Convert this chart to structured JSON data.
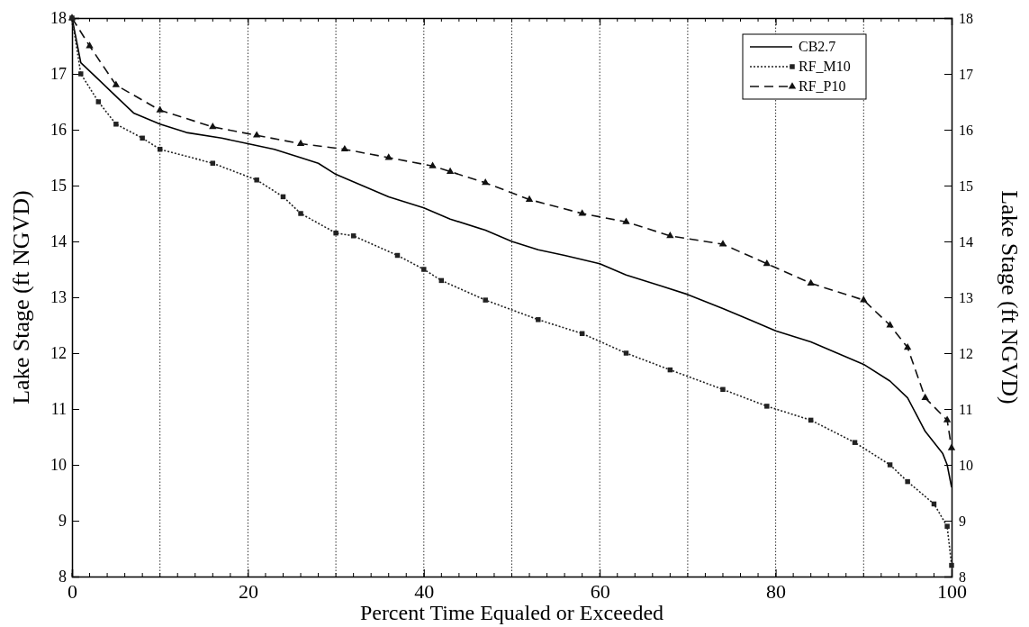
{
  "chart_data": {
    "type": "line",
    "xlabel": "Percent Time Equaled or Exceeded",
    "ylabel": "Lake Stage (ft NGVD)",
    "y2label": "Lake Stage (ft NGVD)",
    "xlim": [
      0,
      100
    ],
    "xticks": [
      0,
      20,
      40,
      60,
      80,
      100
    ],
    "ylim": [
      8,
      18
    ],
    "yticks": [
      8,
      9,
      10,
      11,
      12,
      13,
      14,
      15,
      16,
      17,
      18
    ],
    "y2lim": [
      8,
      18
    ],
    "y2ticks": [
      8,
      9,
      10,
      11,
      12,
      13,
      14,
      15,
      16,
      17,
      18
    ],
    "grid": "x",
    "legend": "top right",
    "series": [
      {
        "name": "CB2.7",
        "color": "#000000",
        "line_style": "solid",
        "marker": "none",
        "x": [
          0,
          1,
          3,
          5,
          7,
          10,
          13,
          17,
          20,
          23,
          26,
          28,
          30,
          33,
          36,
          40,
          43,
          47,
          50,
          53,
          56,
          60,
          63,
          67,
          70,
          74,
          77,
          80,
          84,
          87,
          90,
          93,
          95,
          97,
          99,
          99.5,
          100
        ],
        "values": [
          18,
          17.2,
          16.9,
          16.6,
          16.3,
          16.1,
          15.95,
          15.85,
          15.75,
          15.65,
          15.5,
          15.4,
          15.2,
          15,
          14.8,
          14.6,
          14.4,
          14.2,
          14,
          13.85,
          13.75,
          13.6,
          13.4,
          13.2,
          13.05,
          12.8,
          12.6,
          12.4,
          12.2,
          12,
          11.8,
          11.5,
          11.2,
          10.6,
          10.2,
          10,
          9.6
        ]
      },
      {
        "name": "RF_M10",
        "color": "#222222",
        "line_style": "dotted",
        "marker": "square",
        "x": [
          0,
          1,
          3,
          5,
          8,
          10,
          16,
          21,
          24,
          26,
          30,
          32,
          37,
          40,
          42,
          47,
          53,
          58,
          63,
          68,
          74,
          79,
          84,
          89,
          93,
          95,
          98,
          99.5,
          100
        ],
        "values": [
          18,
          17,
          16.5,
          16.1,
          15.85,
          15.65,
          15.4,
          15.1,
          14.8,
          14.5,
          14.15,
          14.1,
          13.75,
          13.5,
          13.3,
          12.95,
          12.6,
          12.35,
          12,
          11.7,
          11.35,
          11.05,
          10.8,
          10.4,
          10,
          9.7,
          9.3,
          8.9,
          8.2
        ]
      },
      {
        "name": "RF_P10",
        "color": "#111111",
        "line_style": "dashed",
        "marker": "triangle",
        "x": [
          0,
          2,
          5,
          10,
          16,
          21,
          26,
          31,
          36,
          41,
          43,
          47,
          52,
          58,
          63,
          68,
          74,
          79,
          84,
          90,
          93,
          95,
          97,
          99.5,
          100
        ],
        "values": [
          18,
          17.5,
          16.8,
          16.35,
          16.05,
          15.9,
          15.75,
          15.65,
          15.5,
          15.35,
          15.25,
          15.05,
          14.75,
          14.5,
          14.35,
          14.1,
          13.95,
          13.6,
          13.25,
          12.95,
          12.5,
          12.1,
          11.2,
          10.8,
          10.3
        ]
      }
    ]
  }
}
